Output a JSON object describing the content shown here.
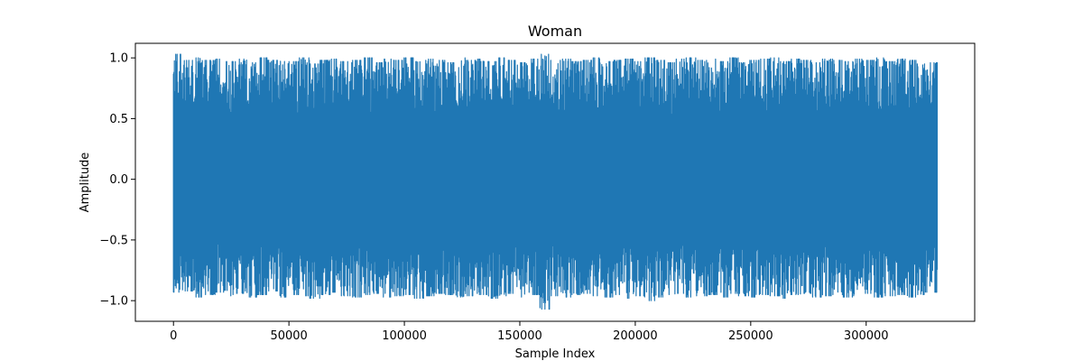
{
  "chart_data": {
    "type": "line",
    "title": "Woman",
    "xlabel": "Sample Index",
    "ylabel": "Amplitude",
    "xlim": [
      -16500,
      347000
    ],
    "ylim": [
      -1.17,
      1.12
    ],
    "x_ticks": [
      0,
      50000,
      100000,
      150000,
      200000,
      250000,
      300000
    ],
    "y_ticks": [
      -1.0,
      -0.5,
      0.0,
      0.5,
      1.0
    ],
    "x_tick_labels": [
      "0",
      "50000",
      "100000",
      "150000",
      "200000",
      "250000",
      "300000"
    ],
    "y_tick_labels": [
      "−1.0",
      "−0.5",
      "0.0",
      "0.5",
      "1.0"
    ],
    "grid": false,
    "series": [
      {
        "color": "#1f77b4",
        "x_start": 0,
        "x_end": 330750,
        "envelope_top": [
          1.03,
          0.98,
          1.0,
          0.98,
          0.99,
          0.97,
          0.99,
          0.96,
          1.0,
          0.98,
          0.99,
          0.97,
          1.0,
          0.95,
          0.98,
          0.99,
          0.97,
          0.98,
          1.0,
          0.96,
          0.99,
          0.98,
          1.0,
          0.97,
          0.99,
          0.98,
          0.96,
          1.0,
          0.98,
          0.99,
          0.97,
          1.0,
          0.98,
          0.96,
          0.99,
          1.03,
          0.98,
          0.99,
          0.97,
          0.98,
          1.0,
          0.97,
          0.98,
          0.99,
          0.97,
          1.0,
          0.98,
          0.96,
          0.99,
          1.0,
          0.98,
          0.99,
          0.97,
          1.0,
          0.96,
          0.98,
          0.99,
          1.0,
          0.97,
          0.99,
          0.98,
          0.96,
          0.99,
          0.98,
          0.97,
          0.99,
          0.98,
          1.0,
          0.97,
          0.99,
          0.98,
          0.95,
          0.96
        ],
        "envelope_bottom": [
          -0.93,
          -0.92,
          -0.97,
          -0.95,
          -0.93,
          -0.96,
          -0.94,
          -0.97,
          -0.95,
          -0.92,
          -0.97,
          -0.95,
          -0.96,
          -0.98,
          -0.95,
          -0.93,
          -0.96,
          -0.97,
          -0.95,
          -0.94,
          -0.97,
          -0.96,
          -0.95,
          -0.98,
          -0.96,
          -0.94,
          -0.95,
          -0.97,
          -0.96,
          -0.95,
          -0.98,
          -0.96,
          -0.94,
          -0.97,
          -0.95,
          -1.07,
          -0.96,
          -0.97,
          -0.95,
          -0.94,
          -0.96,
          -0.97,
          -0.95,
          -0.98,
          -0.96,
          -1.0,
          -0.97,
          -0.95,
          -0.94,
          -0.97,
          -0.96,
          -0.95,
          -0.97,
          -0.94,
          -0.96,
          -0.97,
          -0.95,
          -0.96,
          -0.98,
          -0.95,
          -0.94,
          -0.97,
          -0.96,
          -0.95,
          -0.97,
          -0.96,
          -0.94,
          -0.97,
          -0.96,
          -0.95,
          -0.97,
          -0.95,
          -0.93
        ]
      }
    ]
  }
}
